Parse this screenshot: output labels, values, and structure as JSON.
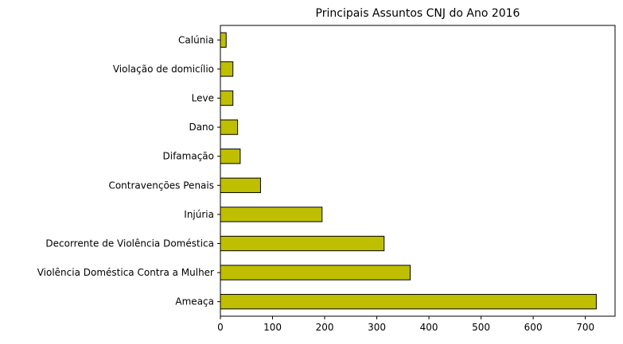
{
  "chart_data": {
    "type": "bar",
    "orientation": "horizontal",
    "title": "Principais Assuntos CNJ do Ano 2016",
    "xlabel": "",
    "ylabel": "",
    "categories": [
      "Ameaça",
      "Violência Doméstica Contra a Mulher",
      "Decorrente de Violência Doméstica",
      "Injúria",
      "Contravenções Penais",
      "Difamação",
      "Dano",
      "Leve",
      "Violação de domicílio",
      "Calúnia"
    ],
    "values": [
      721,
      364,
      314,
      195,
      77,
      38,
      33,
      24,
      24,
      11
    ],
    "xlim": [
      0,
      757
    ],
    "xticks": [
      0,
      100,
      200,
      300,
      400,
      500,
      600,
      700
    ],
    "grid": false,
    "colors": {
      "bar_fill": "#bfbf00",
      "bar_edge": "#000000"
    }
  }
}
